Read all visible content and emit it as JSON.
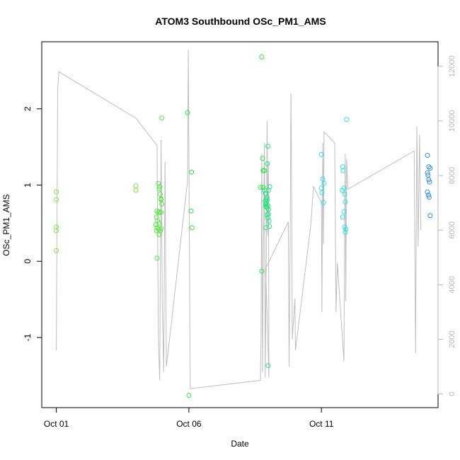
{
  "chart_data": {
    "type": "scatter",
    "title": "ATOM3 Southbound OSc_PM1_AMS",
    "xlabel": "Date",
    "ylabel": "OSc_PM1_AMS",
    "x_unit": "days after Oct 01",
    "x_ticks": [
      {
        "value": 0,
        "label": "Oct 01"
      },
      {
        "value": 5,
        "label": "Oct 06"
      },
      {
        "value": 10,
        "label": "Oct 11"
      }
    ],
    "y_ticks": [
      {
        "value": -1,
        "label": "-1"
      },
      {
        "value": 0,
        "label": "0"
      },
      {
        "value": 1,
        "label": "1"
      },
      {
        "value": 2,
        "label": "2"
      }
    ],
    "y2_ticks": [
      {
        "value": 0,
        "label": "0"
      },
      {
        "value": 2000,
        "label": "2000"
      },
      {
        "value": 4000,
        "label": "4000"
      },
      {
        "value": 6000,
        "label": "6000"
      },
      {
        "value": 8000,
        "label": "8000"
      },
      {
        "value": 10000,
        "label": "10000"
      },
      {
        "value": 12000,
        "label": "12000"
      }
    ],
    "xlim": [
      -0.55,
      14.4
    ],
    "ylim": [
      -1.92,
      2.88
    ],
    "y2lim": [
      -500,
      12900
    ],
    "grid": false,
    "legend": "none",
    "colors": {
      "early": "#7ee83e",
      "mid": "#28e63e",
      "late_mid": "#22e6a0",
      "cyan": "#28e2e6",
      "blue": "#2a8ee6",
      "line": "#bebebe"
    },
    "series": [
      {
        "color": "#7ee83e",
        "points": [
          [
            0.0,
            0.91
          ],
          [
            0.0,
            0.81
          ],
          [
            0.0,
            0.45
          ],
          [
            0.0,
            0.4
          ],
          [
            0.0,
            0.14
          ],
          [
            3.0,
            0.99
          ],
          [
            3.0,
            0.93
          ]
        ]
      },
      {
        "color": "#4ee83e",
        "points": [
          [
            3.85,
            1.02
          ],
          [
            3.88,
            0.95
          ],
          [
            3.92,
            0.88
          ],
          [
            3.95,
            0.82
          ],
          [
            3.98,
            0.75
          ],
          [
            3.8,
            0.66
          ],
          [
            3.85,
            0.64
          ],
          [
            3.9,
            0.65
          ],
          [
            3.95,
            0.64
          ],
          [
            3.78,
            0.58
          ],
          [
            3.82,
            0.53
          ],
          [
            3.88,
            0.5
          ],
          [
            3.75,
            0.48
          ],
          [
            3.8,
            0.44
          ],
          [
            3.86,
            0.42
          ],
          [
            3.92,
            0.4
          ],
          [
            3.96,
            0.43
          ],
          [
            3.78,
            0.4
          ],
          [
            3.88,
            0.35
          ],
          [
            3.8,
            0.04
          ],
          [
            3.98,
            1.88
          ],
          [
            3.9,
            0.98
          ],
          [
            3.95,
            0.81
          ]
        ]
      },
      {
        "color": "#28e63e",
        "points": [
          [
            4.95,
            1.95
          ],
          [
            5.1,
            1.17
          ],
          [
            5.08,
            0.66
          ],
          [
            5.12,
            0.44
          ],
          [
            5.0,
            -1.76
          ],
          [
            7.75,
            2.68
          ],
          [
            7.78,
            1.35
          ],
          [
            7.8,
            1.19
          ],
          [
            7.85,
            1.19
          ],
          [
            7.7,
            0.97
          ],
          [
            7.8,
            0.97
          ],
          [
            7.9,
            0.75
          ],
          [
            7.92,
            0.72
          ],
          [
            7.75,
            -0.13
          ]
        ]
      },
      {
        "color": "#22e680",
        "points": [
          [
            7.85,
            0.93
          ],
          [
            7.9,
            0.89
          ],
          [
            7.95,
            0.84
          ],
          [
            7.88,
            0.79
          ],
          [
            7.92,
            0.76
          ],
          [
            7.98,
            0.73
          ],
          [
            8.0,
            0.68
          ],
          [
            7.95,
            0.61
          ],
          [
            7.9,
            0.44
          ],
          [
            7.98,
            1.51
          ],
          [
            7.96,
            1.28
          ],
          [
            8.0,
            0.93
          ],
          [
            7.88,
            0.89
          ],
          [
            7.92,
            0.82
          ],
          [
            7.95,
            0.8
          ],
          [
            7.9,
            0.72
          ],
          [
            7.96,
            0.7
          ],
          [
            8.0,
            0.62
          ],
          [
            7.98,
            0.57
          ],
          [
            8.02,
            0.53
          ],
          [
            8.04,
            0.46
          ],
          [
            8.05,
            0.98
          ],
          [
            7.99,
            -1.37
          ]
        ]
      },
      {
        "color": "#28e2e6",
        "points": [
          [
            10.0,
            1.4
          ],
          [
            10.05,
            1.08
          ],
          [
            10.1,
            1.02
          ],
          [
            10.0,
            0.96
          ],
          [
            10.02,
            0.9
          ],
          [
            10.08,
            0.77
          ],
          [
            10.95,
            1.86
          ],
          [
            10.8,
            1.24
          ],
          [
            10.82,
            1.19
          ],
          [
            10.85,
            0.96
          ],
          [
            10.78,
            0.93
          ],
          [
            10.88,
            0.88
          ],
          [
            10.9,
            0.78
          ],
          [
            10.85,
            0.65
          ],
          [
            10.8,
            0.58
          ],
          [
            10.88,
            0.45
          ],
          [
            10.92,
            0.42
          ],
          [
            10.9,
            0.38
          ]
        ]
      },
      {
        "color": "#2a8ee6",
        "points": [
          [
            14.0,
            1.39
          ],
          [
            14.05,
            1.24
          ],
          [
            14.1,
            1.22
          ],
          [
            14.0,
            1.16
          ],
          [
            14.02,
            1.13
          ],
          [
            14.05,
            1.07
          ],
          [
            14.08,
            1.04
          ],
          [
            14.0,
            0.91
          ],
          [
            14.04,
            0.87
          ],
          [
            14.06,
            0.84
          ],
          [
            14.1,
            0.6
          ]
        ]
      }
    ],
    "secondary_line": {
      "axis": "right",
      "points": [
        [
          0.0,
          1600
        ],
        [
          0.05,
          11200
        ],
        [
          0.1,
          11800
        ],
        [
          3.0,
          10100
        ],
        [
          3.8,
          9100
        ],
        [
          3.85,
          2000
        ],
        [
          3.9,
          500
        ],
        [
          3.95,
          9300
        ],
        [
          4.0,
          3200
        ],
        [
          4.05,
          800
        ],
        [
          4.1,
          8500
        ],
        [
          4.15,
          1000
        ],
        [
          4.95,
          7800
        ],
        [
          4.98,
          12600
        ],
        [
          5.0,
          9000
        ],
        [
          5.05,
          200
        ],
        [
          5.1,
          200
        ],
        [
          7.7,
          500
        ],
        [
          7.72,
          2000
        ],
        [
          7.75,
          8800
        ],
        [
          7.78,
          800
        ],
        [
          7.8,
          4000
        ],
        [
          7.85,
          9200
        ],
        [
          7.88,
          600
        ],
        [
          7.92,
          5200
        ],
        [
          7.95,
          10000
        ],
        [
          7.98,
          5800
        ],
        [
          8.0,
          8500
        ],
        [
          8.02,
          600
        ],
        [
          7.9,
          4600
        ],
        [
          8.5,
          5800
        ],
        [
          8.75,
          6300
        ],
        [
          8.78,
          1000
        ],
        [
          8.82,
          5500
        ],
        [
          8.85,
          11000
        ],
        [
          8.88,
          7200
        ],
        [
          8.9,
          2000
        ],
        [
          9.0,
          3500
        ],
        [
          9.02,
          1600
        ],
        [
          9.6,
          6200
        ],
        [
          9.7,
          7600
        ],
        [
          10.0,
          7000
        ],
        [
          10.02,
          3000
        ],
        [
          10.05,
          9200
        ],
        [
          10.08,
          5500
        ],
        [
          10.1,
          9600
        ],
        [
          10.5,
          9200
        ],
        [
          10.55,
          3000
        ],
        [
          10.6,
          4800
        ],
        [
          10.85,
          1200
        ],
        [
          10.88,
          6500
        ],
        [
          10.9,
          8800
        ],
        [
          10.92,
          3400
        ],
        [
          10.95,
          8600
        ],
        [
          11.0,
          7500
        ],
        [
          13.5,
          8900
        ],
        [
          13.55,
          1500
        ],
        [
          13.6,
          9800
        ],
        [
          13.65,
          5400
        ],
        [
          13.7,
          9500
        ],
        [
          13.75,
          6000
        ]
      ]
    }
  }
}
